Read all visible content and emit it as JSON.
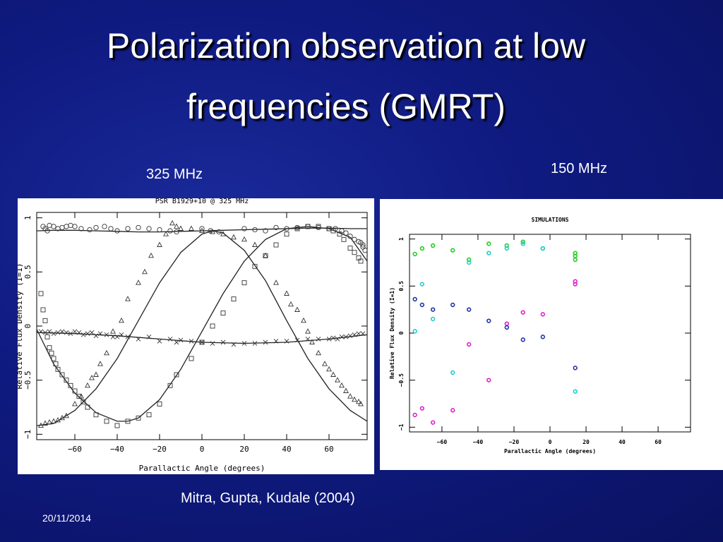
{
  "slide": {
    "title_line1": "Polarization observation at low",
    "title_line2": "frequencies (GMRT)",
    "label_left": "325 MHz",
    "label_right": "150 MHz",
    "citation": "Mitra, Gupta, Kudale (2004)",
    "date": "20/11/2014"
  },
  "chart_data": [
    {
      "type": "scatter",
      "title": "PSR B1929+10 @ 325 MHz",
      "xlabel": "Parallactic Angle (degrees)",
      "ylabel": "Relative Flux Density (I=1)",
      "xlim": [
        -78,
        78
      ],
      "ylim": [
        -1.05,
        1.05
      ],
      "xticks": [
        -60,
        -40,
        -20,
        0,
        20,
        40,
        60
      ],
      "yticks": [
        -1,
        -0.5,
        0,
        0.5,
        1
      ],
      "ytick_labels": [
        "-1",
        "-0.5",
        "0",
        "0.5",
        "1"
      ],
      "series": [
        {
          "marker": "circle",
          "x": [
            -75,
            -74,
            -73,
            -72,
            -70,
            -68,
            -66,
            -64,
            -62,
            -60,
            -57,
            -53,
            -50,
            -46,
            -43,
            -40,
            -35,
            -30,
            -25,
            -20,
            -15,
            -12,
            0,
            4,
            8,
            20,
            25,
            30,
            35,
            40,
            45,
            50,
            55,
            60,
            63,
            66,
            68,
            70,
            72,
            74,
            75,
            76,
            76,
            77
          ],
          "y": [
            0.92,
            0.9,
            0.88,
            0.93,
            0.92,
            0.9,
            0.91,
            0.92,
            0.93,
            0.92,
            0.9,
            0.89,
            0.91,
            0.92,
            0.9,
            0.88,
            0.9,
            0.91,
            0.9,
            0.89,
            0.88,
            0.87,
            0.9,
            0.88,
            0.87,
            0.9,
            0.89,
            0.88,
            0.91,
            0.9,
            0.91,
            0.92,
            0.91,
            0.9,
            0.9,
            0.88,
            0.86,
            0.83,
            0.8,
            0.78,
            0.77,
            0.75,
            0.73,
            0.7
          ]
        },
        {
          "marker": "triangle",
          "x": [
            -76,
            -74,
            -72,
            -70,
            -68,
            -66,
            -64,
            -60,
            -57,
            -54,
            -52,
            -50,
            -48,
            -45,
            -42,
            -38,
            -35,
            -30,
            -27,
            -24,
            -20,
            -17,
            -14,
            -12,
            -10,
            -5,
            0,
            5,
            10,
            15,
            20,
            25,
            30,
            35,
            40,
            42,
            45,
            48,
            50,
            52,
            55,
            58,
            60,
            62,
            64,
            66,
            68,
            70,
            72,
            74,
            75
          ],
          "y": [
            -0.92,
            -0.9,
            -0.89,
            -0.88,
            -0.87,
            -0.85,
            -0.83,
            -0.72,
            -0.65,
            -0.55,
            -0.48,
            -0.45,
            -0.35,
            -0.25,
            -0.05,
            0.05,
            0.25,
            0.4,
            0.5,
            0.65,
            0.75,
            0.85,
            0.95,
            0.92,
            0.9,
            0.9,
            0.88,
            0.87,
            0.85,
            0.82,
            0.8,
            0.75,
            0.65,
            0.4,
            0.3,
            0.2,
            0.15,
            0.05,
            -0.05,
            -0.15,
            -0.25,
            -0.35,
            -0.4,
            -0.45,
            -0.5,
            -0.55,
            -0.6,
            -0.65,
            -0.68,
            -0.7,
            -0.72
          ]
        },
        {
          "marker": "square",
          "x": [
            -76,
            -75,
            -74,
            -73,
            -72,
            -71,
            -70,
            -69,
            -68,
            -66,
            -64,
            -62,
            -60,
            -58,
            -56,
            -54,
            -50,
            -45,
            -40,
            -35,
            -30,
            -25,
            -20,
            -15,
            -12,
            -5,
            0,
            5,
            10,
            15,
            20,
            25,
            30,
            35,
            40,
            45,
            50,
            55,
            60,
            62,
            65,
            67,
            70,
            72,
            74,
            75
          ],
          "y": [
            0.3,
            0.15,
            0.05,
            -0.1,
            -0.2,
            -0.25,
            -0.3,
            -0.35,
            -0.4,
            -0.45,
            -0.5,
            -0.55,
            -0.6,
            -0.65,
            -0.7,
            -0.75,
            -0.82,
            -0.88,
            -0.92,
            -0.88,
            -0.85,
            -0.82,
            -0.72,
            -0.55,
            -0.45,
            -0.3,
            -0.15,
            0,
            0.12,
            0.25,
            0.4,
            0.55,
            0.65,
            0.75,
            0.85,
            0.9,
            0.92,
            0.92,
            0.9,
            0.88,
            0.85,
            0.8,
            0.72,
            0.68,
            0.63,
            0.6
          ]
        },
        {
          "marker": "cross",
          "x": [
            -76,
            -74,
            -72,
            -70,
            -68,
            -66,
            -64,
            -62,
            -60,
            -58,
            -56,
            -54,
            -52,
            -50,
            -48,
            -45,
            -42,
            -40,
            -38,
            -35,
            -30,
            -25,
            -20,
            -15,
            -12,
            -10,
            -5,
            0,
            5,
            10,
            15,
            20,
            25,
            30,
            35,
            40,
            45,
            50,
            55,
            60,
            62,
            64,
            66,
            68,
            70,
            72,
            74,
            76
          ],
          "y": [
            -0.05,
            -0.06,
            -0.05,
            -0.07,
            -0.06,
            -0.05,
            -0.06,
            -0.07,
            -0.05,
            -0.06,
            -0.08,
            -0.07,
            -0.06,
            -0.09,
            -0.07,
            -0.08,
            -0.1,
            -0.1,
            -0.08,
            -0.1,
            -0.12,
            -0.1,
            -0.14,
            -0.12,
            -0.15,
            -0.13,
            -0.14,
            -0.15,
            -0.16,
            -0.15,
            -0.17,
            -0.16,
            -0.16,
            -0.15,
            -0.14,
            -0.14,
            -0.13,
            -0.12,
            -0.12,
            -0.12,
            -0.11,
            -0.12,
            -0.1,
            -0.1,
            -0.09,
            -0.08,
            -0.07,
            -0.07
          ]
        }
      ],
      "fits": [
        {
          "x": [
            -78,
            -70,
            -60,
            -50,
            -40,
            -30,
            -20,
            -10,
            0,
            10,
            20,
            30,
            40,
            50,
            60,
            70,
            78
          ],
          "y": [
            0.88,
            0.885,
            0.885,
            0.88,
            0.875,
            0.87,
            0.87,
            0.875,
            0.88,
            0.885,
            0.89,
            0.895,
            0.9,
            0.905,
            0.905,
            0.9,
            0.9
          ]
        },
        {
          "x": [
            -78,
            -70,
            -60,
            -50,
            -40,
            -30,
            -20,
            -10,
            0,
            5,
            10,
            20,
            30,
            40,
            50,
            60,
            70,
            78
          ],
          "y": [
            -0.92,
            -0.9,
            -0.78,
            -0.58,
            -0.3,
            0.05,
            0.4,
            0.68,
            0.85,
            0.88,
            0.86,
            0.7,
            0.42,
            0.05,
            -0.3,
            -0.58,
            -0.78,
            -0.88
          ]
        },
        {
          "x": [
            -78,
            -70,
            -60,
            -50,
            -40,
            -35,
            -30,
            -20,
            -10,
            0,
            10,
            20,
            30,
            40,
            50,
            60,
            70,
            78
          ],
          "y": [
            -0.03,
            -0.35,
            -0.62,
            -0.8,
            -0.88,
            -0.88,
            -0.85,
            -0.68,
            -0.4,
            -0.05,
            0.3,
            0.6,
            0.8,
            0.9,
            0.92,
            0.9,
            0.82,
            0.6
          ]
        },
        {
          "x": [
            -78,
            -60,
            -40,
            -20,
            0,
            20,
            40,
            60,
            78
          ],
          "y": [
            -0.06,
            -0.07,
            -0.09,
            -0.12,
            -0.15,
            -0.16,
            -0.15,
            -0.12,
            -0.08
          ]
        }
      ]
    },
    {
      "type": "scatter",
      "title": "SIMULATIONS",
      "xlabel": "Parallactic Angle (degrees)",
      "ylabel": "Relative Flux Density (I=1)",
      "xlim": [
        -78,
        78
      ],
      "ylim": [
        -1.05,
        1.05
      ],
      "xticks": [
        -60,
        -40,
        -20,
        0,
        20,
        40,
        60
      ],
      "yticks": [
        -1,
        -0.5,
        0,
        0.5,
        1
      ],
      "ytick_labels": [
        "-1",
        "-0.5",
        "0",
        "0.5",
        "1"
      ],
      "series": [
        {
          "color": "#22cc22",
          "x": [
            -75,
            -71,
            -65,
            -54,
            -45,
            -34,
            -24,
            -15,
            -4,
            14,
            14,
            14
          ],
          "y": [
            0.84,
            0.9,
            0.93,
            0.88,
            0.78,
            0.95,
            0.93,
            0.97,
            0.9,
            0.78,
            0.82,
            0.85
          ]
        },
        {
          "color": "#22cccc",
          "x": [
            -75,
            -71,
            -65,
            -54,
            -45,
            -34,
            -24,
            -15,
            -4,
            14
          ],
          "y": [
            0.02,
            0.52,
            0.15,
            -0.42,
            0.75,
            0.85,
            0.9,
            0.95,
            0.9,
            -0.62
          ]
        },
        {
          "color": "#dd22cc",
          "x": [
            -75,
            -71,
            -65,
            -54,
            -45,
            -34,
            -24,
            -15,
            -4,
            14,
            14
          ],
          "y": [
            -0.87,
            -0.8,
            -0.95,
            -0.82,
            -0.12,
            -0.5,
            0.1,
            0.22,
            0.2,
            0.52,
            0.55
          ]
        },
        {
          "color": "#2233aa",
          "x": [
            -75,
            -71,
            -65,
            -54,
            -45,
            -34,
            -24,
            -15,
            -4,
            14
          ],
          "y": [
            0.36,
            0.3,
            0.25,
            0.3,
            0.25,
            0.13,
            0.06,
            -0.07,
            -0.04,
            -0.37
          ]
        }
      ]
    }
  ]
}
